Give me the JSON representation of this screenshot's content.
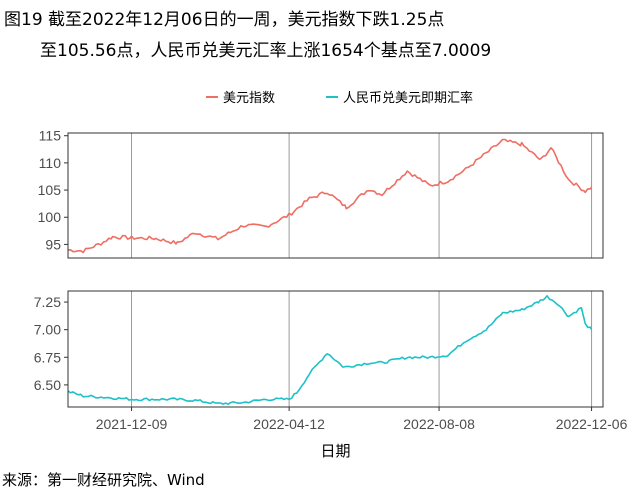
{
  "title_line1": "图19  截至2022年12月06日的一周，美元指数下跌1.25点",
  "title_line2": "至105.56点，人民币兑美元汇率上涨1654个基点至7.0009",
  "source": "来源：第一财经研究院、Wind",
  "colors": {
    "usd_index": "#ee6e63",
    "cny_rate": "#1ec1c6"
  },
  "chart_data": [
    {
      "type": "line",
      "panel": "top",
      "ylim": [
        92.5,
        115.5
      ],
      "yticks": [
        95,
        100,
        105,
        110,
        115
      ],
      "xlabel": "",
      "ylabel": "",
      "grid": true,
      "legend": "top",
      "series": [
        {
          "name": "美元指数",
          "x": [
            "2021-10-20",
            "2021-11-01",
            "2021-11-15",
            "2021-11-24",
            "2021-12-09",
            "2021-12-28",
            "2022-01-14",
            "2022-01-28",
            "2022-02-15",
            "2022-03-07",
            "2022-03-25",
            "2022-04-12",
            "2022-04-28",
            "2022-05-12",
            "2022-05-27",
            "2022-06-14",
            "2022-06-24",
            "2022-07-14",
            "2022-08-01",
            "2022-08-15",
            "2022-08-29",
            "2022-09-06",
            "2022-09-27",
            "2022-10-12",
            "2022-10-27",
            "2022-11-04",
            "2022-11-18",
            "2022-12-01",
            "2022-12-06"
          ],
          "values": [
            94.0,
            93.8,
            95.2,
            96.4,
            96.2,
            96.1,
            95.2,
            97.2,
            96.0,
            98.5,
            98.3,
            100.4,
            103.4,
            104.7,
            101.8,
            105.2,
            104.2,
            108.5,
            105.8,
            106.7,
            108.8,
            110.3,
            114.1,
            113.4,
            110.5,
            112.8,
            106.9,
            104.8,
            105.56
          ]
        }
      ],
      "note": "values read approximately from chart"
    },
    {
      "type": "line",
      "panel": "bottom",
      "ylim": [
        6.3,
        7.35
      ],
      "yticks": [
        6.5,
        6.75,
        7.0,
        7.25
      ],
      "xlabel": "日期",
      "ylabel": "",
      "grid": true,
      "legend": "top",
      "series": [
        {
          "name": "人民币兑美元即期汇率",
          "x": [
            "2021-10-20",
            "2021-11-01",
            "2021-11-15",
            "2021-12-09",
            "2022-01-10",
            "2022-01-28",
            "2022-02-15",
            "2022-03-07",
            "2022-03-25",
            "2022-04-12",
            "2022-04-18",
            "2022-04-28",
            "2022-05-12",
            "2022-05-25",
            "2022-06-14",
            "2022-06-24",
            "2022-07-14",
            "2022-08-01",
            "2022-08-15",
            "2022-08-29",
            "2022-09-14",
            "2022-09-27",
            "2022-10-12",
            "2022-10-25",
            "2022-11-01",
            "2022-11-09",
            "2022-11-18",
            "2022-11-28",
            "2022-12-01",
            "2022-12-06"
          ],
          "values": [
            6.44,
            6.4,
            6.39,
            6.37,
            6.37,
            6.36,
            6.33,
            6.34,
            6.37,
            6.37,
            6.43,
            6.6,
            6.79,
            6.66,
            6.7,
            6.7,
            6.75,
            6.75,
            6.77,
            6.9,
            7.0,
            7.15,
            7.18,
            7.25,
            7.3,
            7.24,
            7.12,
            7.2,
            7.05,
            7.0009
          ]
        }
      ]
    }
  ],
  "x_axis": {
    "start": "2021-10-20",
    "end": "2022-12-15",
    "ticks": [
      "2021-12-09",
      "2022-04-12",
      "2022-08-08",
      "2022-12-06"
    ]
  }
}
